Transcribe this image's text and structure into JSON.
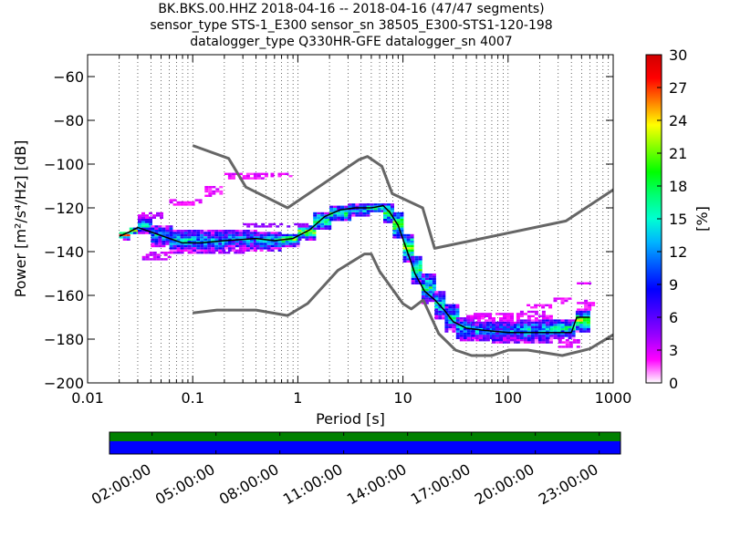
{
  "header": {
    "line1": "BK.BKS.00.HHZ   2018-04-16 -- 2018-04-16  (47/47 segments)",
    "line2": "sensor_type STS-1_E300 sensor_sn 38505_E300-STS1-120-198",
    "line3": "datalogger_type Q330HR-GFE datalogger_sn 4007"
  },
  "chart_data": [
    {
      "type": "heatmap",
      "xlabel": "Period [s]",
      "ylabel": "Power [m²/s⁴/Hz] [dB]",
      "xscale": "log",
      "xlim": [
        0.01,
        1000
      ],
      "ylim": [
        -200,
        -50
      ],
      "xticks": [
        {
          "v": 0.01,
          "label": "0.01"
        },
        {
          "v": 0.1,
          "label": "0.1"
        },
        {
          "v": 1,
          "label": "1"
        },
        {
          "v": 10,
          "label": "10"
        },
        {
          "v": 100,
          "label": "100"
        },
        {
          "v": 1000,
          "label": "1000"
        }
      ],
      "yticks": [
        {
          "v": -60,
          "label": "−60"
        },
        {
          "v": -80,
          "label": "−80"
        },
        {
          "v": -100,
          "label": "−100"
        },
        {
          "v": -120,
          "label": "−120"
        },
        {
          "v": -140,
          "label": "−140"
        },
        {
          "v": -160,
          "label": "−160"
        },
        {
          "v": -180,
          "label": "−180"
        },
        {
          "v": -200,
          "label": "−200"
        }
      ],
      "grid": "dotted, x only",
      "colorbar": {
        "label": "[%]",
        "range": [
          0,
          30
        ],
        "ticks": [
          "0",
          "3",
          "6",
          "9",
          "12",
          "15",
          "18",
          "21",
          "24",
          "27",
          "30"
        ],
        "colormap": [
          "#ffffff",
          "#ff00ff",
          "#9a00ff",
          "#4b00ff",
          "#0000ff",
          "#0057ff",
          "#00b4ff",
          "#00ffd2",
          "#00ff73",
          "#00ff00",
          "#7eff00",
          "#ffff00",
          "#ff7d00",
          "#ff0000",
          "#d00000"
        ]
      },
      "noise_models": {
        "color": "#666666",
        "high": [
          [
            0.1,
            -91.5
          ],
          [
            0.22,
            -97.4
          ],
          [
            0.32,
            -110.5
          ],
          [
            0.8,
            -120
          ],
          [
            3.8,
            -98
          ],
          [
            4.6,
            -96.5
          ],
          [
            6.3,
            -101
          ],
          [
            7.9,
            -113.5
          ],
          [
            15.4,
            -120
          ],
          [
            20,
            -138.5
          ],
          [
            354.8,
            -126
          ],
          [
            10000,
            -80
          ]
        ],
        "low": [
          [
            0.1,
            -168
          ],
          [
            0.17,
            -166.7
          ],
          [
            0.4,
            -166.7
          ],
          [
            0.8,
            -169.2
          ],
          [
            1.24,
            -163.7
          ],
          [
            2.4,
            -148.6
          ],
          [
            4.3,
            -141.1
          ],
          [
            5,
            -141.1
          ],
          [
            6,
            -149
          ],
          [
            10,
            -163.8
          ],
          [
            12,
            -166.2
          ],
          [
            15.6,
            -162.1
          ],
          [
            21.9,
            -177.5
          ],
          [
            31.6,
            -185
          ],
          [
            45,
            -187.5
          ],
          [
            70,
            -187.5
          ],
          [
            101,
            -185
          ],
          [
            154,
            -185
          ],
          [
            328,
            -187.5
          ],
          [
            600,
            -184.4
          ],
          [
            1000,
            -178
          ]
        ]
      },
      "mode_line": {
        "color": "#000000",
        "points": [
          [
            0.02,
            -133
          ],
          [
            0.025,
            -131
          ],
          [
            0.03,
            -129
          ],
          [
            0.04,
            -131
          ],
          [
            0.06,
            -134
          ],
          [
            0.08,
            -136
          ],
          [
            0.12,
            -136
          ],
          [
            0.2,
            -135
          ],
          [
            0.4,
            -134
          ],
          [
            0.6,
            -135
          ],
          [
            0.9,
            -134
          ],
          [
            1.3,
            -130
          ],
          [
            1.8,
            -124
          ],
          [
            2.5,
            -121
          ],
          [
            3.5,
            -120
          ],
          [
            5,
            -120
          ],
          [
            6.5,
            -119
          ],
          [
            7.5,
            -122
          ],
          [
            9,
            -128
          ],
          [
            11,
            -140
          ],
          [
            13,
            -150
          ],
          [
            16,
            -158
          ],
          [
            20,
            -162
          ],
          [
            25,
            -167
          ],
          [
            30,
            -172
          ],
          [
            40,
            -175
          ],
          [
            60,
            -176
          ],
          [
            100,
            -177
          ],
          [
            200,
            -177
          ],
          [
            400,
            -177
          ],
          [
            450,
            -170
          ],
          [
            600,
            -170
          ]
        ]
      },
      "density_bands": [
        {
          "x": [
            0.02,
            0.025
          ],
          "y": [
            -134,
            -131
          ],
          "pct": 22
        },
        {
          "x": [
            0.025,
            0.03
          ],
          "y": [
            -132,
            -129
          ],
          "pct": 20
        },
        {
          "x": [
            0.03,
            0.04
          ],
          "y": [
            -132,
            -124
          ],
          "pct": 12
        },
        {
          "x": [
            0.04,
            0.06
          ],
          "y": [
            -137,
            -128
          ],
          "pct": 10
        },
        {
          "x": [
            0.06,
            0.1
          ],
          "y": [
            -140,
            -130
          ],
          "pct": 11
        },
        {
          "x": [
            0.1,
            0.2
          ],
          "y": [
            -140,
            -130
          ],
          "pct": 10
        },
        {
          "x": [
            0.2,
            0.4
          ],
          "y": [
            -139,
            -130
          ],
          "pct": 9
        },
        {
          "x": [
            0.4,
            0.7
          ],
          "y": [
            -139,
            -131
          ],
          "pct": 12
        },
        {
          "x": [
            0.7,
            1.0
          ],
          "y": [
            -137,
            -132
          ],
          "pct": 17
        },
        {
          "x": [
            1.0,
            1.4
          ],
          "y": [
            -134,
            -128
          ],
          "pct": 18
        },
        {
          "x": [
            1.4,
            2.0
          ],
          "y": [
            -130,
            -122
          ],
          "pct": 15
        },
        {
          "x": [
            2.0,
            3.0
          ],
          "y": [
            -126,
            -119
          ],
          "pct": 14
        },
        {
          "x": [
            3.0,
            4.5
          ],
          "y": [
            -124,
            -118
          ],
          "pct": 10
        },
        {
          "x": [
            4.5,
            6.5
          ],
          "y": [
            -122,
            -118
          ],
          "pct": 14
        },
        {
          "x": [
            6.5,
            8.0
          ],
          "y": [
            -127,
            -118
          ],
          "pct": 16
        },
        {
          "x": [
            8.0,
            10.0
          ],
          "y": [
            -133,
            -122
          ],
          "pct": 18
        },
        {
          "x": [
            10.0,
            12.0
          ],
          "y": [
            -144,
            -132
          ],
          "pct": 17
        },
        {
          "x": [
            12.0,
            15.0
          ],
          "y": [
            -154,
            -142
          ],
          "pct": 15
        },
        {
          "x": [
            15.0,
            20.0
          ],
          "y": [
            -163,
            -150
          ],
          "pct": 13
        },
        {
          "x": [
            20.0,
            25.0
          ],
          "y": [
            -170,
            -158
          ],
          "pct": 12
        },
        {
          "x": [
            25.0,
            32.0
          ],
          "y": [
            -176,
            -164
          ],
          "pct": 12
        },
        {
          "x": [
            32.0,
            45.0
          ],
          "y": [
            -180,
            -170
          ],
          "pct": 10
        },
        {
          "x": [
            45.0,
            70.0
          ],
          "y": [
            -180,
            -172
          ],
          "pct": 10
        },
        {
          "x": [
            70.0,
            120.0
          ],
          "y": [
            -181,
            -172
          ],
          "pct": 9
        },
        {
          "x": [
            120.0,
            250.0
          ],
          "y": [
            -181,
            -171
          ],
          "pct": 11
        },
        {
          "x": [
            250.0,
            420.0
          ],
          "y": [
            -179,
            -171
          ],
          "pct": 13
        },
        {
          "x": [
            440.0,
            600.0
          ],
          "y": [
            -176,
            -167
          ],
          "pct": 17
        }
      ],
      "outliers": [
        {
          "x": [
            0.06,
            0.12
          ],
          "y": [
            -119,
            -116
          ],
          "pct": 2
        },
        {
          "x": [
            0.13,
            0.18
          ],
          "y": [
            -115,
            -110
          ],
          "pct": 2
        },
        {
          "x": [
            0.2,
            0.5
          ],
          "y": [
            -107,
            -104
          ],
          "pct": 2
        },
        {
          "x": [
            0.55,
            0.9
          ],
          "y": [
            -106,
            -104
          ],
          "pct": 2
        },
        {
          "x": [
            0.033,
            0.06
          ],
          "y": [
            -143,
            -140
          ],
          "pct": 3
        },
        {
          "x": [
            0.12,
            0.3
          ],
          "y": [
            -141,
            -140
          ],
          "pct": 4
        },
        {
          "x": [
            0.03,
            0.05
          ],
          "y": [
            -125,
            -122
          ],
          "pct": 3
        },
        {
          "x": [
            0.3,
            1.2
          ],
          "y": [
            -129,
            -127
          ],
          "pct": 4
        },
        {
          "x": [
            40,
            110
          ],
          "y": [
            -171,
            -168
          ],
          "pct": 2
        },
        {
          "x": [
            120,
            250
          ],
          "y": [
            -170,
            -167
          ],
          "pct": 2
        },
        {
          "x": [
            150,
            260
          ],
          "y": [
            -166,
            -164
          ],
          "pct": 2
        },
        {
          "x": [
            270,
            400
          ],
          "y": [
            -163,
            -161
          ],
          "pct": 2
        },
        {
          "x": [
            300,
            450
          ],
          "y": [
            -183,
            -180
          ],
          "pct": 2
        },
        {
          "x": [
            450,
            620
          ],
          "y": [
            -155,
            -154
          ],
          "pct": 2
        },
        {
          "x": [
            450,
            620
          ],
          "y": [
            -166,
            -162
          ],
          "pct": 2
        }
      ]
    },
    {
      "type": "timeline",
      "tick_labels": [
        "02:00:00",
        "05:00:00",
        "08:00:00",
        "11:00:00",
        "14:00:00",
        "17:00:00",
        "20:00:00",
        "23:00:00"
      ],
      "tick_hours": [
        2,
        5,
        8,
        11,
        14,
        17,
        20,
        23
      ],
      "range_hours": [
        0,
        24
      ],
      "tracks": [
        {
          "color": "#008000",
          "coverage": 1.0
        },
        {
          "color": "#0000ff",
          "coverage": 1.0
        }
      ]
    }
  ]
}
